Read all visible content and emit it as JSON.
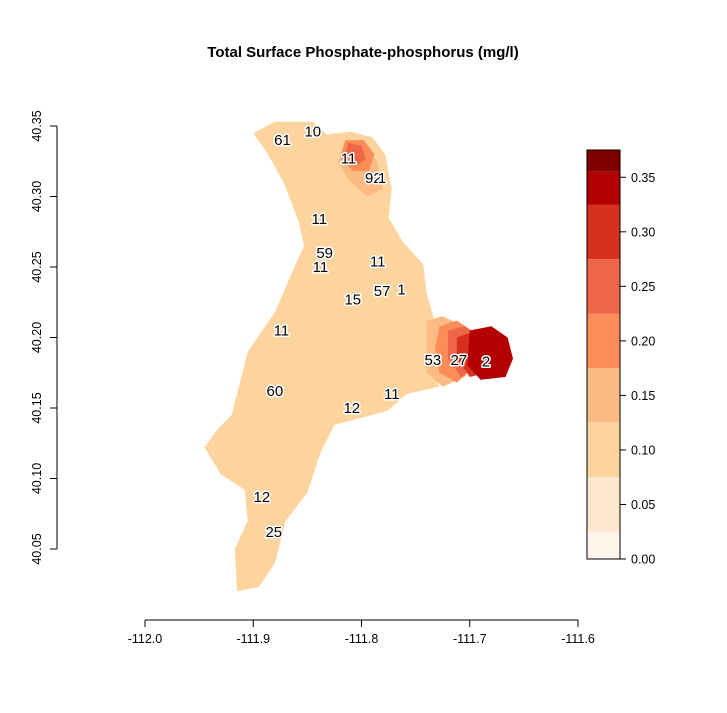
{
  "title": "Total Surface Phosphate-phosphorus (mg/l)",
  "x_axis": {
    "min": -112.0,
    "max": -111.6,
    "ticks": [
      {
        "value": -112.0,
        "label": "-112.0"
      },
      {
        "value": -111.9,
        "label": "-111.9"
      },
      {
        "value": -111.8,
        "label": "-111.8"
      },
      {
        "value": -111.7,
        "label": "-111.7"
      },
      {
        "value": -111.6,
        "label": "-111.6"
      }
    ]
  },
  "y_axis": {
    "min": 40.05,
    "max": 40.35,
    "ticks": [
      {
        "value": 40.05,
        "label": "40.05"
      },
      {
        "value": 40.1,
        "label": "40.10"
      },
      {
        "value": 40.15,
        "label": "40.15"
      },
      {
        "value": 40.2,
        "label": "40.20"
      },
      {
        "value": 40.25,
        "label": "40.25"
      },
      {
        "value": 40.3,
        "label": "40.30"
      },
      {
        "value": 40.35,
        "label": "40.35"
      }
    ]
  },
  "legend": {
    "min": 0.0,
    "max": 0.375,
    "bins": [
      {
        "from": 0.0,
        "to": 0.025,
        "color": "#fff5eb"
      },
      {
        "from": 0.025,
        "to": 0.075,
        "color": "#fee6ce"
      },
      {
        "from": 0.075,
        "to": 0.125,
        "color": "#fdd49e"
      },
      {
        "from": 0.125,
        "to": 0.175,
        "color": "#fdbb84"
      },
      {
        "from": 0.175,
        "to": 0.225,
        "color": "#fc8d59"
      },
      {
        "from": 0.225,
        "to": 0.275,
        "color": "#ef6548"
      },
      {
        "from": 0.275,
        "to": 0.325,
        "color": "#d7301f"
      },
      {
        "from": 0.325,
        "to": 0.355,
        "color": "#b30000"
      },
      {
        "from": 0.355,
        "to": 0.375,
        "color": "#7f0000"
      }
    ],
    "ticks": [
      {
        "value": 0.0,
        "label": "0.00"
      },
      {
        "value": 0.05,
        "label": "0.05"
      },
      {
        "value": 0.1,
        "label": "0.10"
      },
      {
        "value": 0.15,
        "label": "0.15"
      },
      {
        "value": 0.2,
        "label": "0.20"
      },
      {
        "value": 0.25,
        "label": "0.25"
      },
      {
        "value": 0.3,
        "label": "0.30"
      },
      {
        "value": 0.35,
        "label": "0.35"
      }
    ]
  },
  "lake": {
    "base_value": 0.1,
    "outline": [
      [
        -111.88,
        40.353
      ],
      [
        -111.845,
        40.353
      ],
      [
        -111.832,
        40.344
      ],
      [
        -111.81,
        40.346
      ],
      [
        -111.79,
        40.342
      ],
      [
        -111.778,
        40.33
      ],
      [
        -111.772,
        40.305
      ],
      [
        -111.775,
        40.285
      ],
      [
        -111.762,
        40.268
      ],
      [
        -111.743,
        40.252
      ],
      [
        -111.74,
        40.232
      ],
      [
        -111.733,
        40.213
      ],
      [
        -111.74,
        40.185
      ],
      [
        -111.728,
        40.165
      ],
      [
        -111.758,
        40.16
      ],
      [
        -111.776,
        40.148
      ],
      [
        -111.8,
        40.143
      ],
      [
        -111.825,
        40.138
      ],
      [
        -111.838,
        40.118
      ],
      [
        -111.85,
        40.09
      ],
      [
        -111.87,
        40.07
      ],
      [
        -111.88,
        40.04
      ],
      [
        -111.895,
        40.023
      ],
      [
        -111.915,
        40.02
      ],
      [
        -111.917,
        40.05
      ],
      [
        -111.905,
        40.07
      ],
      [
        -111.908,
        40.092
      ],
      [
        -111.93,
        40.103
      ],
      [
        -111.945,
        40.122
      ],
      [
        -111.933,
        40.135
      ],
      [
        -111.92,
        40.145
      ],
      [
        -111.905,
        40.19
      ],
      [
        -111.88,
        40.218
      ],
      [
        -111.862,
        40.25
      ],
      [
        -111.853,
        40.265
      ],
      [
        -111.858,
        40.282
      ],
      [
        -111.872,
        40.31
      ],
      [
        -111.888,
        40.332
      ],
      [
        -111.9,
        40.345
      ]
    ],
    "zones": [
      {
        "value": 0.15,
        "points": [
          [
            -111.813,
            40.333
          ],
          [
            -111.8,
            40.335
          ],
          [
            -111.786,
            40.326
          ],
          [
            -111.78,
            40.305
          ],
          [
            -111.795,
            40.3
          ],
          [
            -111.812,
            40.312
          ],
          [
            -111.822,
            40.325
          ]
        ]
      },
      {
        "value": 0.2,
        "points": [
          [
            -111.815,
            40.34
          ],
          [
            -111.798,
            40.34
          ],
          [
            -111.788,
            40.33
          ],
          [
            -111.793,
            40.318
          ],
          [
            -111.808,
            40.318
          ],
          [
            -111.82,
            40.328
          ]
        ]
      },
      {
        "value": 0.25,
        "points": [
          [
            -111.812,
            40.338
          ],
          [
            -111.8,
            40.336
          ],
          [
            -111.796,
            40.326
          ],
          [
            -111.806,
            40.322
          ],
          [
            -111.815,
            40.33
          ]
        ]
      },
      {
        "value": 0.15,
        "points": [
          [
            -111.74,
            40.212
          ],
          [
            -111.725,
            40.215
          ],
          [
            -111.705,
            40.208
          ],
          [
            -111.69,
            40.188
          ],
          [
            -111.705,
            40.172
          ],
          [
            -111.725,
            40.165
          ],
          [
            -111.74,
            40.175
          ]
        ]
      },
      {
        "value": 0.2,
        "points": [
          [
            -111.728,
            40.208
          ],
          [
            -111.712,
            40.212
          ],
          [
            -111.698,
            40.205
          ],
          [
            -111.695,
            40.18
          ],
          [
            -111.712,
            40.168
          ],
          [
            -111.728,
            40.175
          ],
          [
            -111.732,
            40.192
          ]
        ]
      },
      {
        "value": 0.25,
        "points": [
          [
            -111.72,
            40.205
          ],
          [
            -111.705,
            40.208
          ],
          [
            -111.69,
            40.2
          ],
          [
            -111.692,
            40.18
          ],
          [
            -111.708,
            40.172
          ],
          [
            -111.72,
            40.185
          ]
        ]
      },
      {
        "value": 0.3,
        "points": [
          [
            -111.712,
            40.2
          ],
          [
            -111.69,
            40.206
          ],
          [
            -111.675,
            40.2
          ],
          [
            -111.68,
            40.176
          ],
          [
            -111.7,
            40.172
          ],
          [
            -111.712,
            40.186
          ]
        ]
      },
      {
        "value": 0.33,
        "points": [
          [
            -111.7,
            40.205
          ],
          [
            -111.68,
            40.208
          ],
          [
            -111.665,
            40.2
          ],
          [
            -111.66,
            40.185
          ],
          [
            -111.667,
            40.172
          ],
          [
            -111.69,
            40.17
          ],
          [
            -111.702,
            40.18
          ]
        ]
      }
    ]
  },
  "site_labels": [
    {
      "text": "61",
      "lon": -111.873,
      "lat": 40.34
    },
    {
      "text": "10",
      "lon": -111.845,
      "lat": 40.346
    },
    {
      "text": "11",
      "lon": -111.812,
      "lat": 40.327
    },
    {
      "text": "92",
      "lon": -111.789,
      "lat": 40.313
    },
    {
      "text": "1",
      "lon": -111.781,
      "lat": 40.313
    },
    {
      "text": "11",
      "lon": -111.839,
      "lat": 40.284
    },
    {
      "text": "59",
      "lon": -111.834,
      "lat": 40.26
    },
    {
      "text": "11",
      "lon": -111.838,
      "lat": 40.25
    },
    {
      "text": "11",
      "lon": -111.785,
      "lat": 40.254
    },
    {
      "text": "57",
      "lon": -111.781,
      "lat": 40.233
    },
    {
      "text": "1",
      "lon": -111.763,
      "lat": 40.234
    },
    {
      "text": "15",
      "lon": -111.808,
      "lat": 40.227
    },
    {
      "text": "11",
      "lon": -111.874,
      "lat": 40.205
    },
    {
      "text": "53",
      "lon": -111.734,
      "lat": 40.184
    },
    {
      "text": "27",
      "lon": -111.71,
      "lat": 40.184
    },
    {
      "text": "2",
      "lon": -111.685,
      "lat": 40.183
    },
    {
      "text": "60",
      "lon": -111.88,
      "lat": 40.162
    },
    {
      "text": "11",
      "lon": -111.772,
      "lat": 40.16
    },
    {
      "text": "12",
      "lon": -111.809,
      "lat": 40.15
    },
    {
      "text": "12",
      "lon": -111.892,
      "lat": 40.087
    },
    {
      "text": "25",
      "lon": -111.881,
      "lat": 40.062
    }
  ]
}
